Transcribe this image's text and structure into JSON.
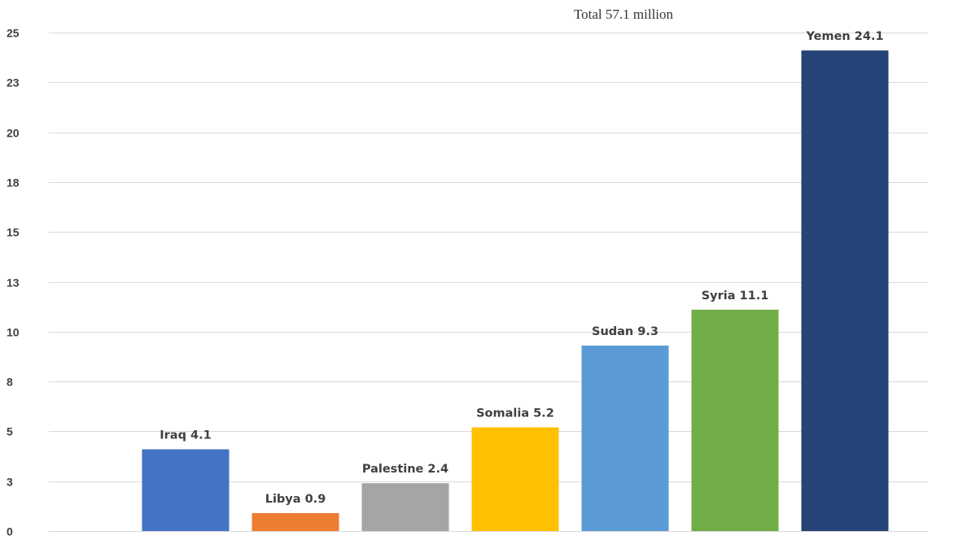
{
  "chart_data": {
    "type": "bar",
    "title": "Total 57.1 million",
    "categories": [
      "Iraq",
      "Libya",
      "Palestine",
      "Somalia",
      "Sudan",
      "Syria",
      "Yemen"
    ],
    "values": [
      4.1,
      0.9,
      2.4,
      5.2,
      9.3,
      11.1,
      24.1
    ],
    "data_labels": [
      "Iraq 4.1",
      "Libya 0.9",
      "Palestine 2.4",
      "Somalia 5.2",
      "Sudan 9.3",
      "Syria 11.1",
      "Yemen 24.1"
    ],
    "colors": [
      "#4472c4",
      "#ed7d31",
      "#a5a5a5",
      "#ffc000",
      "#5b9bd5",
      "#70ad47",
      "#264478"
    ],
    "ylim": [
      0,
      25
    ],
    "yticks": [
      0,
      2.5,
      5,
      7.5,
      10,
      12.5,
      15,
      17.5,
      20,
      22.5,
      25
    ],
    "ytick_labels": [
      "0",
      "3",
      "5",
      "8",
      "10",
      "13",
      "15",
      "18",
      "20",
      "23",
      "25"
    ],
    "grid": true,
    "xlabel": "",
    "ylabel": ""
  }
}
